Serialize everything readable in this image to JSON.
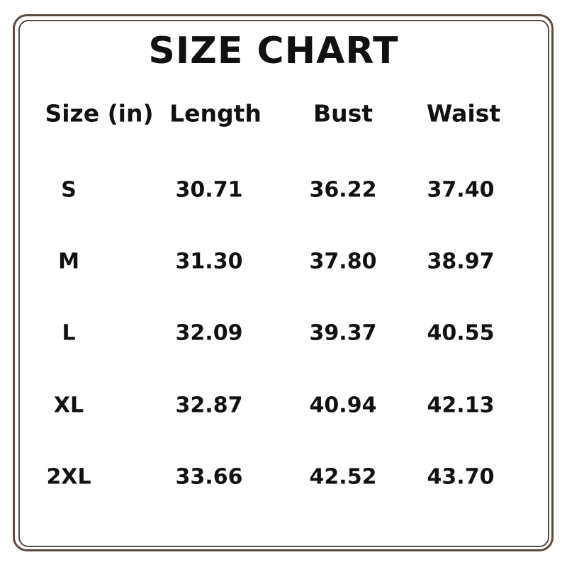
{
  "title": "SIZE CHART",
  "colors": {
    "border": "#5a4a42",
    "text": "#111111"
  },
  "table": {
    "headers": [
      "Size (in)",
      "Length",
      "Bust",
      "Waist"
    ],
    "rows": [
      [
        "S",
        "30.71",
        "36.22",
        "37.40"
      ],
      [
        "M",
        "31.30",
        "37.80",
        "38.97"
      ],
      [
        "L",
        "32.09",
        "39.37",
        "40.55"
      ],
      [
        "XL",
        "32.87",
        "40.94",
        "42.13"
      ],
      [
        "2XL",
        "33.66",
        "42.52",
        "43.70"
      ]
    ]
  }
}
